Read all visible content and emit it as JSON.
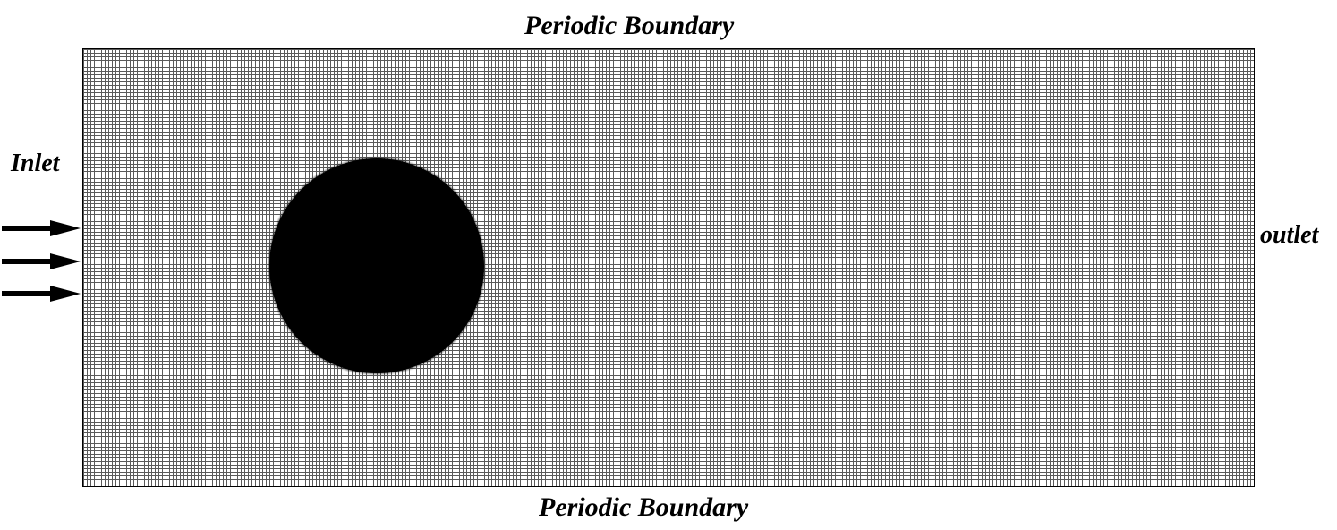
{
  "labels": {
    "top_boundary": "Periodic Boundary",
    "bottom_boundary": "Periodic Boundary",
    "inlet": "Inlet",
    "outlet": "outlet"
  },
  "icons": {
    "inlet_arrows": [
      "arrow-right-icon",
      "arrow-right-icon",
      "arrow-right-icon"
    ]
  },
  "colors": {
    "obstacle": "#000000",
    "mesh_lines": "#5a5a5a",
    "background": "#ffffff",
    "text": "#000000"
  }
}
